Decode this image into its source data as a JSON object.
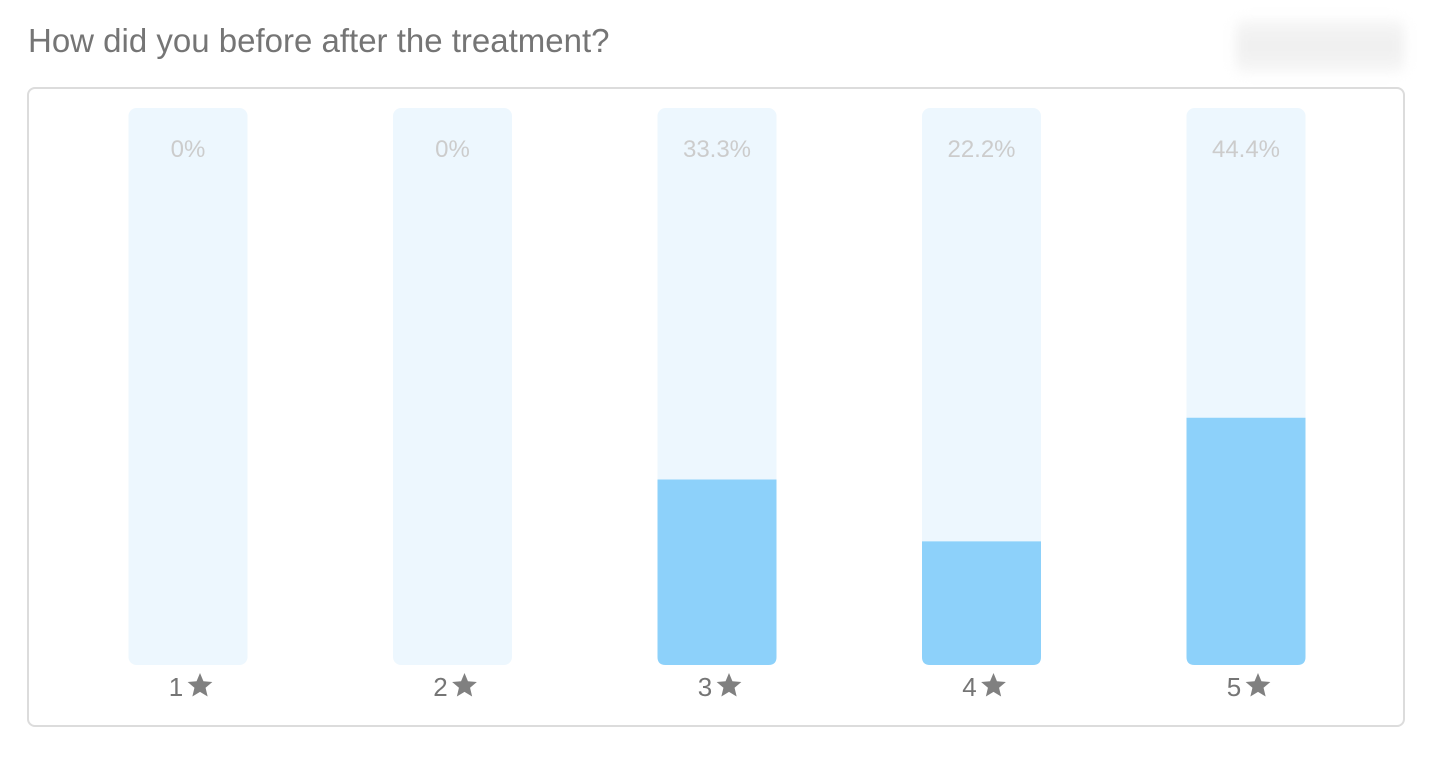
{
  "title": "How did you before after the treatment?",
  "chart_data": {
    "type": "bar",
    "categories": [
      "1",
      "2",
      "3",
      "4",
      "5"
    ],
    "category_icon": "star-icon",
    "values": [
      0,
      0,
      33.3,
      22.2,
      44.4
    ],
    "value_labels": [
      "0%",
      "0%",
      "33.3%",
      "22.2%",
      "44.4%"
    ],
    "ylim": [
      0,
      100
    ],
    "unit": "%",
    "grid": false,
    "colors": {
      "track": "#edf7fe",
      "fill": "#8dd1fa",
      "value_label": "#cccccc",
      "category_label": "#757575",
      "star": "#808080"
    }
  }
}
